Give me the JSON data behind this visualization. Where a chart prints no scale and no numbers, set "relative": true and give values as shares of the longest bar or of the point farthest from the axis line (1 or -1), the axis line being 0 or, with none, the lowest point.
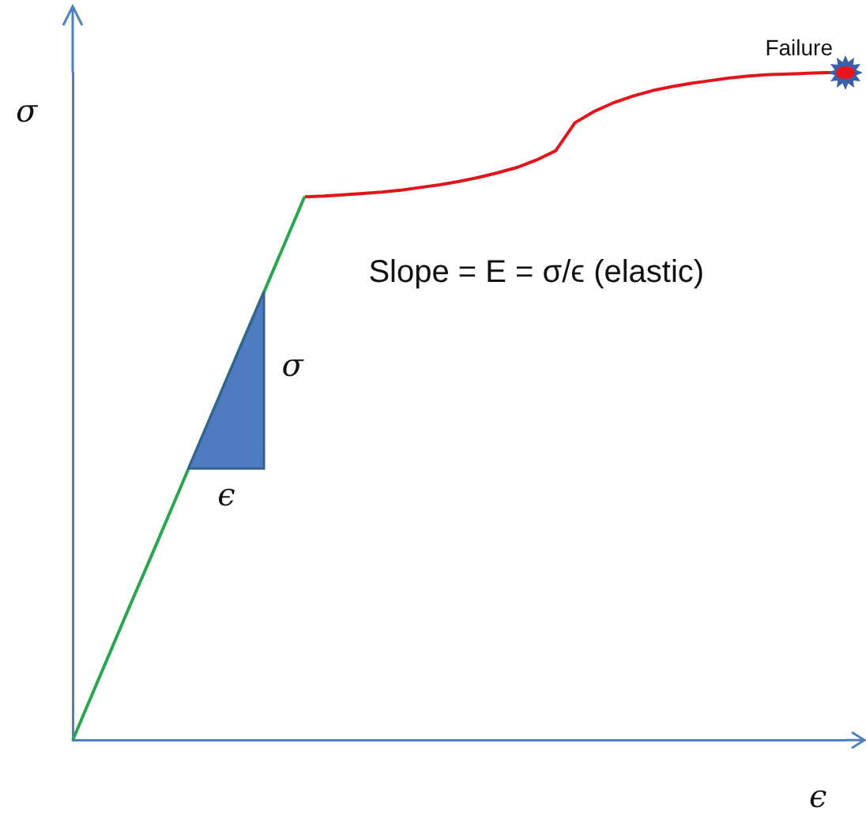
{
  "chart_data": {
    "type": "line",
    "relative": true,
    "xlabel": "ϵ",
    "ylabel": "σ",
    "line_style": "solid",
    "marker": "none",
    "grid": false,
    "legend": false,
    "categories": [
      null,
      null,
      null,
      null,
      null,
      null,
      null,
      null,
      null,
      null,
      null,
      null,
      null,
      null,
      null,
      null,
      null,
      null,
      null,
      null,
      null,
      null,
      null,
      null,
      null,
      null,
      null,
      null,
      null,
      null,
      null,
      null,
      null,
      null,
      null,
      null,
      null,
      null,
      null,
      null,
      null
    ],
    "series": [
      {
        "color": "#2aa552",
        "values": [
          0,
          0.068,
          0.136,
          0.204,
          0.271,
          0.339,
          0.407,
          0.475,
          0.543,
          0.611,
          0.678,
          0.746,
          0.814,
          null,
          null,
          null,
          null,
          null,
          null,
          null,
          null,
          null,
          null,
          null,
          null,
          null,
          null,
          null,
          null,
          null,
          null,
          null,
          null,
          null,
          null,
          null,
          null,
          null,
          null,
          null,
          null
        ]
      },
      {
        "color": "#e3141c",
        "values": [
          null,
          null,
          null,
          null,
          null,
          null,
          null,
          null,
          null,
          null,
          null,
          null,
          0.814,
          0.815,
          0.817,
          0.819,
          0.821,
          0.824,
          0.828,
          0.832,
          0.837,
          0.843,
          0.85,
          0.858,
          0.869,
          0.883,
          0.925,
          0.942,
          0.955,
          0.965,
          0.973,
          0.979,
          0.984,
          0.988,
          0.992,
          0.995,
          0.997,
          0.998,
          0.999,
          1,
          1
        ]
      }
    ],
    "annotations": [
      "Failure",
      "Slope = E = σ/ϵ (elastic)",
      "σ",
      "ϵ"
    ]
  }
}
